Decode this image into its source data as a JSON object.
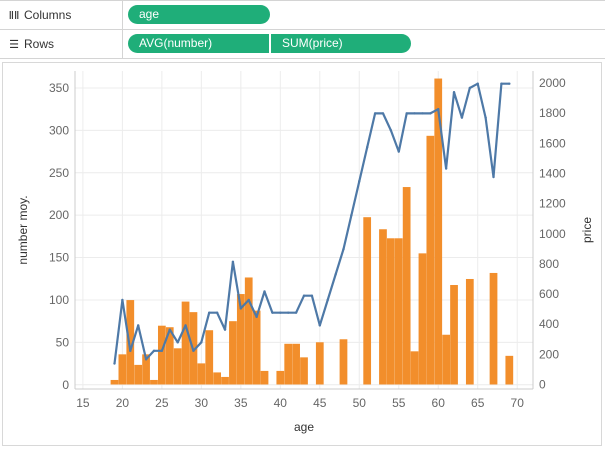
{
  "shelves": {
    "columns": {
      "label": "Columns",
      "icon": "columns-icon",
      "pills": [
        "age"
      ]
    },
    "rows": {
      "label": "Rows",
      "icon": "rows-icon",
      "pills": [
        "AVG(number)",
        "SUM(price)"
      ]
    }
  },
  "colors": {
    "pill": "#1fae79",
    "bar": "#f28e2b",
    "line": "#4e79a7",
    "grid": "#ececec",
    "axis_text": "#666666"
  },
  "chart_data": {
    "type": "bar+line",
    "xlabel": "age",
    "ylabel_left": "number moy.",
    "ylabel_right": "price",
    "xlim": [
      14,
      72
    ],
    "ylim_left": [
      -5,
      370
    ],
    "ylim_right": [
      -30,
      2080
    ],
    "xticks": [
      15,
      20,
      25,
      30,
      35,
      40,
      45,
      50,
      55,
      60,
      65,
      70
    ],
    "yticks_left": [
      0,
      50,
      100,
      150,
      200,
      250,
      300,
      350
    ],
    "yticks_right": [
      0,
      200,
      400,
      600,
      800,
      1000,
      1200,
      1400,
      1600,
      1800,
      2000
    ],
    "grid": true,
    "series": [
      {
        "name": "SUM(price)",
        "type": "bar",
        "axis": "right",
        "x": [
          19,
          20,
          21,
          22,
          23,
          24,
          25,
          26,
          27,
          28,
          29,
          30,
          31,
          32,
          33,
          34,
          35,
          36,
          37,
          38,
          39,
          40,
          41,
          42,
          43,
          44,
          45,
          46,
          47,
          48,
          49,
          50,
          51,
          52,
          53,
          54,
          55,
          56,
          57,
          58,
          59,
          60,
          61,
          62,
          63,
          64,
          65,
          66,
          67,
          68,
          69
        ],
        "values": [
          30,
          200,
          560,
          130,
          200,
          30,
          390,
          380,
          240,
          550,
          480,
          140,
          360,
          80,
          50,
          420,
          600,
          710,
          490,
          90,
          0,
          90,
          270,
          270,
          180,
          0,
          280,
          0,
          0,
          300,
          0,
          0,
          1110,
          0,
          1030,
          970,
          970,
          1310,
          220,
          870,
          1650,
          2030,
          330,
          660,
          0,
          700,
          0,
          0,
          740,
          0,
          190
        ]
      },
      {
        "name": "AVG(number)",
        "type": "line",
        "axis": "left",
        "x": [
          19,
          20,
          21,
          22,
          23,
          24,
          25,
          26,
          27,
          28,
          29,
          30,
          31,
          32,
          33,
          34,
          35,
          36,
          37,
          38,
          39,
          40,
          41,
          42,
          43,
          44,
          45,
          46,
          47,
          48,
          49,
          50,
          51,
          52,
          53,
          54,
          55,
          56,
          57,
          58,
          59,
          60,
          61,
          62,
          63,
          64,
          65,
          66,
          67,
          68,
          69
        ],
        "values": [
          25,
          100,
          40,
          70,
          30,
          40,
          40,
          65,
          50,
          70,
          40,
          50,
          85,
          85,
          65,
          145,
          90,
          100,
          80,
          110,
          85,
          85,
          85,
          85,
          105,
          105,
          70,
          100,
          130,
          160,
          200,
          240,
          280,
          320,
          320,
          300,
          275,
          320,
          320,
          320,
          320,
          325,
          255,
          345,
          315,
          350,
          355,
          315,
          245,
          355,
          355
        ]
      }
    ]
  }
}
